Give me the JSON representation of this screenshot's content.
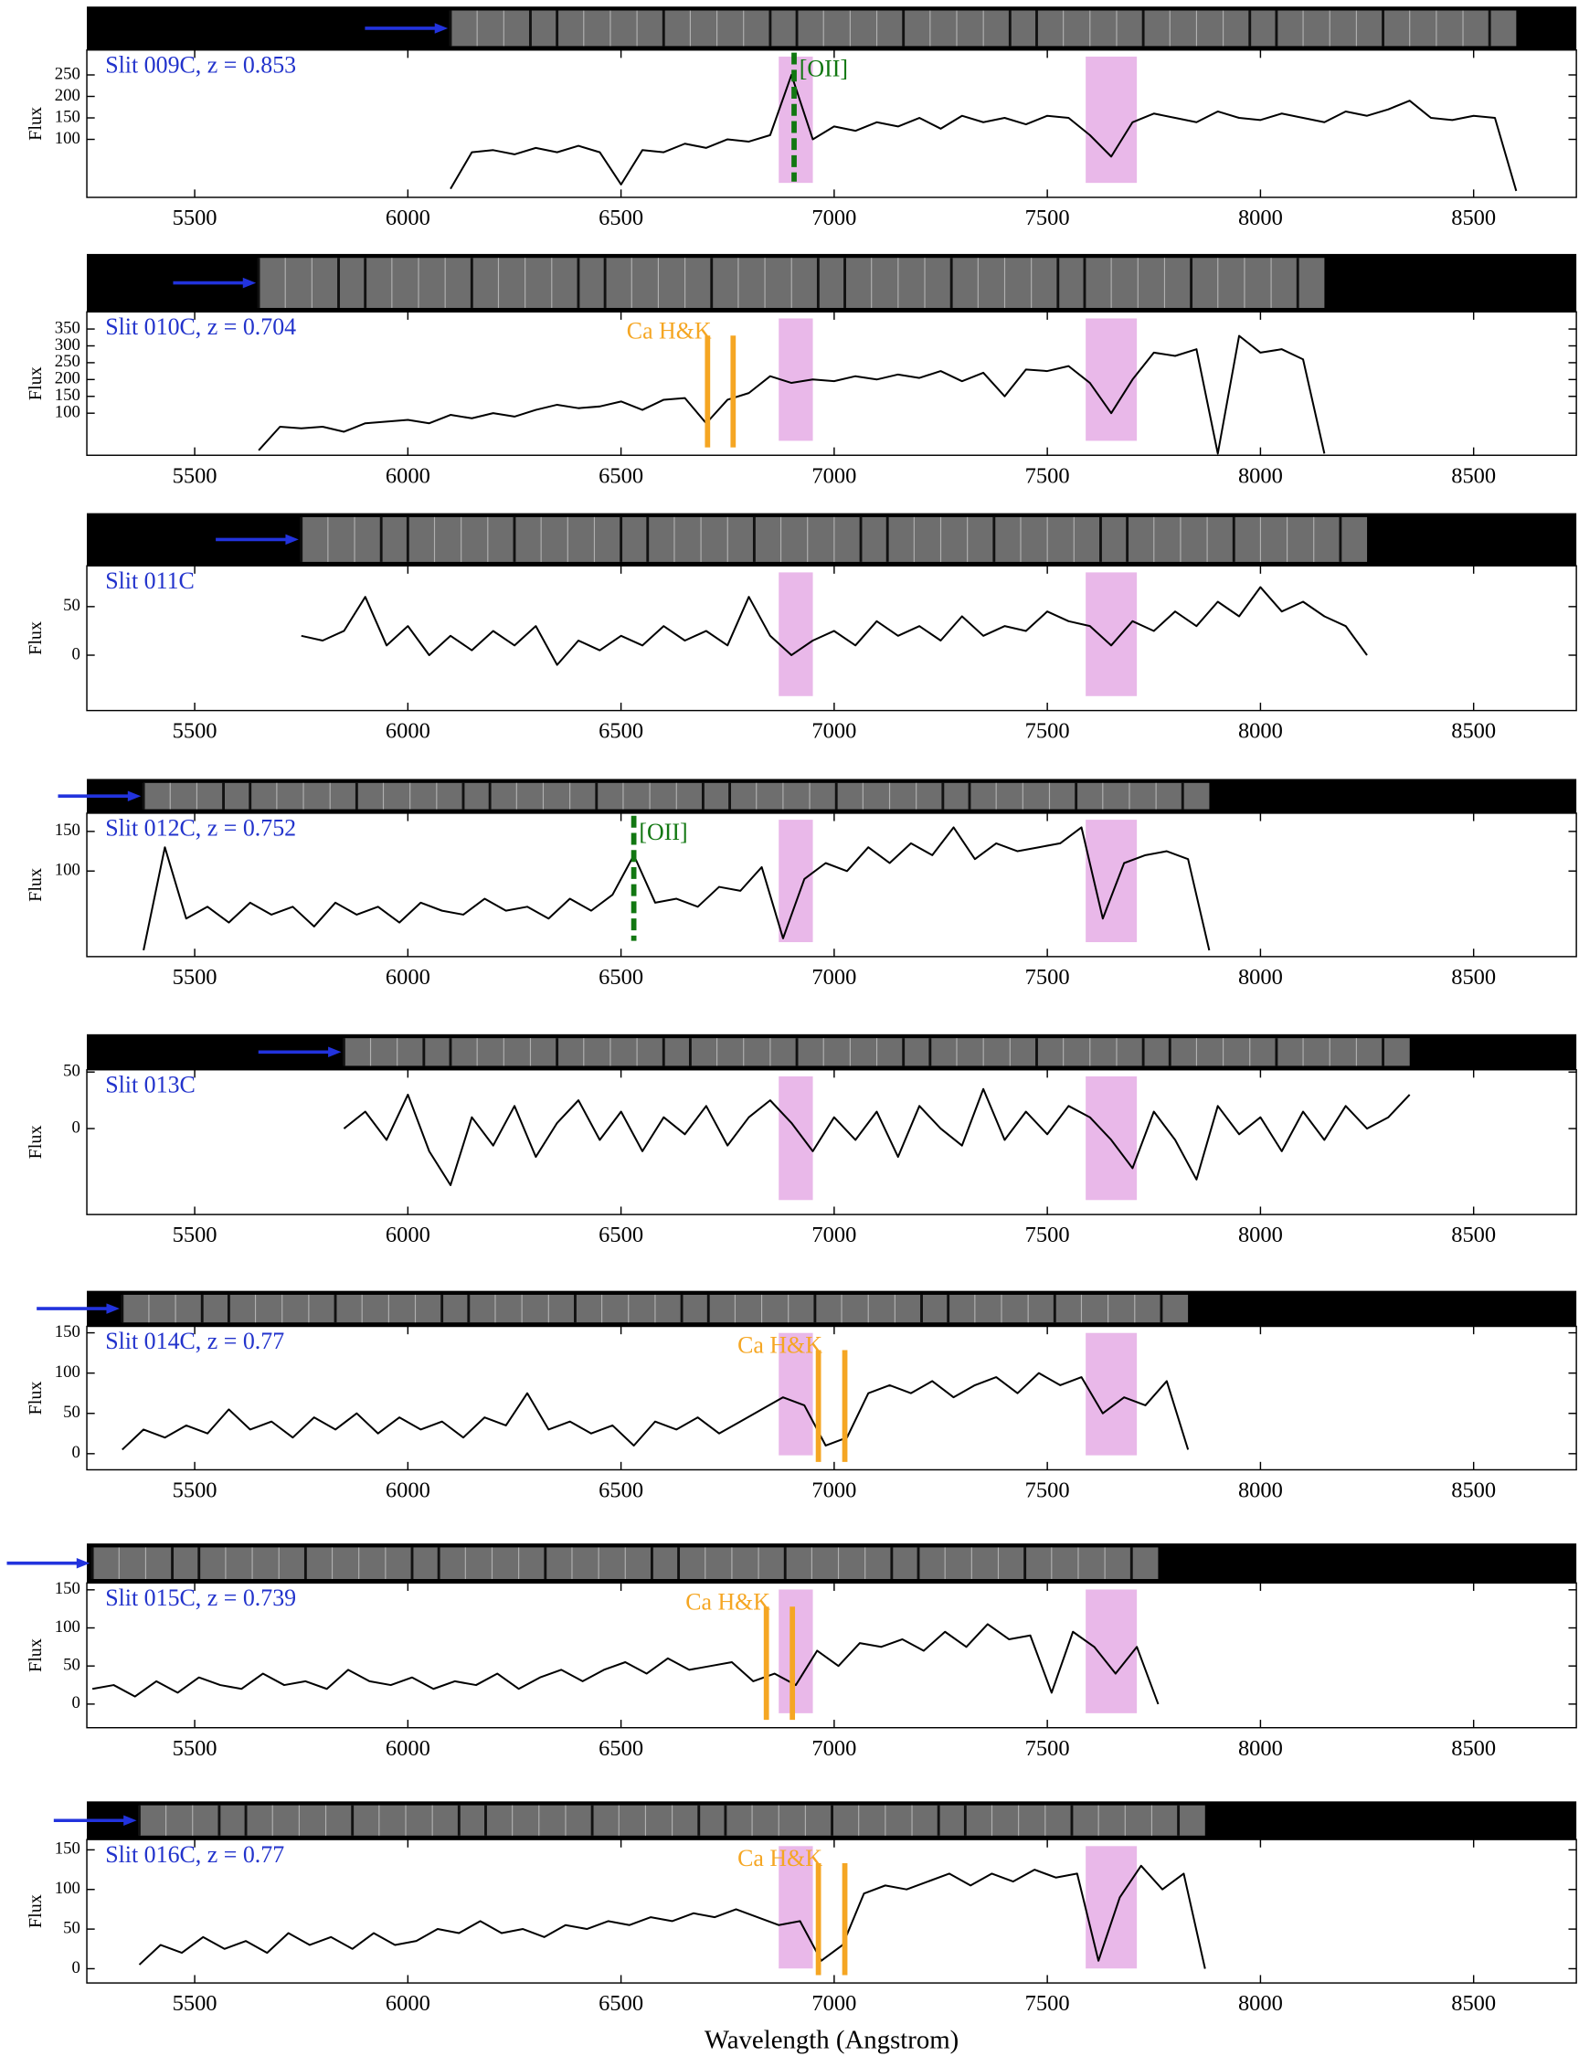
{
  "chart_data": [
    {
      "type": "line",
      "title": "Slit 009C, z = 0.853",
      "ylabel": "Flux",
      "color": "#000000",
      "x": [
        6100,
        6150,
        6200,
        6250,
        6300,
        6350,
        6400,
        6450,
        6500,
        6550,
        6600,
        6650,
        6700,
        6750,
        6800,
        6850,
        6900,
        6950,
        7000,
        7050,
        7100,
        7150,
        7200,
        7250,
        7300,
        7350,
        7400,
        7450,
        7500,
        7550,
        7600,
        7650,
        7700,
        7750,
        7800,
        7850,
        7900,
        7950,
        8000,
        8050,
        8100,
        8150,
        8200,
        8250,
        8300,
        8350,
        8400,
        8450,
        8500,
        8550,
        8600
      ],
      "values": [
        -15,
        70,
        75,
        65,
        80,
        70,
        85,
        70,
        -5,
        75,
        70,
        90,
        80,
        100,
        95,
        110,
        250,
        100,
        130,
        120,
        140,
        130,
        150,
        125,
        155,
        140,
        150,
        135,
        155,
        150,
        110,
        60,
        140,
        160,
        150,
        140,
        165,
        150,
        145,
        160,
        150,
        140,
        165,
        155,
        170,
        190,
        150,
        145,
        155,
        150,
        -20
      ],
      "xlim": [
        5247,
        8741
      ],
      "xticks": [
        5500,
        6000,
        6500,
        7000,
        7500,
        8000,
        8500
      ],
      "ylim": [
        -35,
        308
      ],
      "yticks": [
        100,
        150,
        200,
        250
      ],
      "shaded_regions": [
        [
          6870,
          6950
        ],
        [
          7590,
          7710
        ]
      ],
      "shade_color": "#e9b8e9",
      "annotations": [
        {
          "text": "[OII]",
          "x": [
            6906
          ],
          "color": "#117711",
          "style": "dashed"
        }
      ]
    },
    {
      "type": "line",
      "title": "Slit 010C, z = 0.704",
      "ylabel": "Flux",
      "color": "#000000",
      "x": [
        5650,
        5700,
        5750,
        5800,
        5850,
        5900,
        5950,
        6000,
        6050,
        6100,
        6150,
        6200,
        6250,
        6300,
        6350,
        6400,
        6450,
        6500,
        6550,
        6600,
        6650,
        6700,
        6750,
        6800,
        6850,
        6900,
        6950,
        7000,
        7050,
        7100,
        7150,
        7200,
        7250,
        7300,
        7350,
        7400,
        7450,
        7500,
        7550,
        7600,
        7650,
        7700,
        7750,
        7800,
        7850,
        7900,
        7950,
        8000,
        8050,
        8100,
        8150
      ],
      "values": [
        -10,
        60,
        55,
        60,
        45,
        70,
        75,
        80,
        70,
        95,
        85,
        100,
        90,
        110,
        125,
        115,
        120,
        135,
        110,
        140,
        145,
        70,
        140,
        160,
        210,
        190,
        200,
        195,
        210,
        200,
        215,
        205,
        225,
        195,
        220,
        150,
        230,
        225,
        240,
        190,
        100,
        200,
        280,
        270,
        290,
        -20,
        330,
        280,
        290,
        260,
        -20
      ],
      "xlim": [
        5247,
        8741
      ],
      "xticks": [
        5500,
        6000,
        6500,
        7000,
        7500,
        8000,
        8500
      ],
      "ylim": [
        -25,
        401
      ],
      "yticks": [
        100,
        150,
        200,
        250,
        300,
        350
      ],
      "shaded_regions": [
        [
          6870,
          6950
        ],
        [
          7590,
          7710
        ]
      ],
      "shade_color": "#e9b8e9",
      "annotations": [
        {
          "text": "Ca H&K",
          "x": [
            6703,
            6763
          ],
          "color": "#f5a623",
          "style": "solid"
        }
      ]
    },
    {
      "type": "line",
      "title": "Slit 011C",
      "ylabel": "Flux",
      "color": "#000000",
      "x": [
        5750,
        5800,
        5850,
        5900,
        5950,
        6000,
        6050,
        6100,
        6150,
        6200,
        6250,
        6300,
        6350,
        6400,
        6450,
        6500,
        6550,
        6600,
        6650,
        6700,
        6750,
        6800,
        6850,
        6900,
        6950,
        7000,
        7050,
        7100,
        7150,
        7200,
        7250,
        7300,
        7350,
        7400,
        7450,
        7500,
        7550,
        7600,
        7650,
        7700,
        7750,
        7800,
        7850,
        7900,
        7950,
        8000,
        8050,
        8100,
        8150,
        8200,
        8250
      ],
      "values": [
        20,
        15,
        25,
        60,
        10,
        30,
        0,
        20,
        5,
        25,
        10,
        30,
        -10,
        15,
        5,
        20,
        10,
        30,
        15,
        25,
        10,
        60,
        20,
        0,
        15,
        25,
        10,
        35,
        20,
        30,
        15,
        40,
        20,
        30,
        25,
        45,
        35,
        30,
        10,
        35,
        25,
        45,
        30,
        55,
        40,
        70,
        45,
        55,
        40,
        30,
        0
      ],
      "xlim": [
        5247,
        8741
      ],
      "xticks": [
        5500,
        6000,
        6500,
        7000,
        7500,
        8000,
        8500
      ],
      "ylim": [
        -57,
        92
      ],
      "yticks": [
        0,
        50
      ],
      "shaded_regions": [
        [
          6870,
          6950
        ],
        [
          7590,
          7710
        ]
      ],
      "shade_color": "#e9b8e9",
      "annotations": []
    },
    {
      "type": "line",
      "title": "Slit 012C, z = 0.752",
      "ylabel": "Flux",
      "color": "#000000",
      "x": [
        5380,
        5430,
        5480,
        5530,
        5580,
        5630,
        5680,
        5730,
        5780,
        5830,
        5880,
        5930,
        5980,
        6030,
        6080,
        6130,
        6180,
        6230,
        6280,
        6330,
        6380,
        6430,
        6480,
        6530,
        6580,
        6630,
        6680,
        6730,
        6780,
        6830,
        6880,
        6930,
        6980,
        7030,
        7080,
        7130,
        7180,
        7230,
        7280,
        7330,
        7380,
        7430,
        7480,
        7530,
        7580,
        7630,
        7680,
        7730,
        7780,
        7830,
        7880
      ],
      "values": [
        0,
        130,
        40,
        55,
        35,
        60,
        45,
        55,
        30,
        60,
        45,
        55,
        35,
        60,
        50,
        45,
        65,
        50,
        55,
        40,
        65,
        50,
        70,
        120,
        60,
        65,
        55,
        80,
        75,
        105,
        15,
        90,
        110,
        100,
        130,
        110,
        135,
        120,
        155,
        115,
        135,
        125,
        130,
        135,
        155,
        40,
        110,
        120,
        125,
        115,
        0
      ],
      "xlim": [
        5247,
        8741
      ],
      "xticks": [
        5500,
        6000,
        6500,
        7000,
        7500,
        8000,
        8500
      ],
      "ylim": [
        -8,
        173
      ],
      "yticks": [
        100,
        150
      ],
      "shaded_regions": [
        [
          6870,
          6950
        ],
        [
          7590,
          7710
        ]
      ],
      "shade_color": "#e9b8e9",
      "annotations": [
        {
          "text": "[OII]",
          "x": [
            6530
          ],
          "color": "#117711",
          "style": "dashed"
        }
      ]
    },
    {
      "type": "line",
      "title": "Slit 013C",
      "ylabel": "Flux",
      "color": "#000000",
      "x": [
        5850,
        5900,
        5950,
        6000,
        6050,
        6100,
        6150,
        6200,
        6250,
        6300,
        6350,
        6400,
        6450,
        6500,
        6550,
        6600,
        6650,
        6700,
        6750,
        6800,
        6850,
        6900,
        6950,
        7000,
        7050,
        7100,
        7150,
        7200,
        7250,
        7300,
        7350,
        7400,
        7450,
        7500,
        7550,
        7600,
        7650,
        7700,
        7750,
        7800,
        7850,
        7900,
        7950,
        8000,
        8050,
        8100,
        8150,
        8200,
        8250,
        8300,
        8350
      ],
      "values": [
        0,
        15,
        -10,
        30,
        -20,
        -50,
        10,
        -15,
        20,
        -25,
        5,
        25,
        -10,
        15,
        -20,
        10,
        -5,
        20,
        -15,
        10,
        25,
        5,
        -20,
        10,
        -10,
        15,
        -25,
        20,
        0,
        -15,
        35,
        -10,
        15,
        -5,
        20,
        10,
        -10,
        -35,
        15,
        -10,
        -45,
        20,
        -5,
        10,
        -20,
        15,
        -10,
        20,
        0,
        10,
        30
      ],
      "xlim": [
        5247,
        8741
      ],
      "xticks": [
        5500,
        6000,
        6500,
        7000,
        7500,
        8000,
        8500
      ],
      "ylim": [
        -76,
        52
      ],
      "yticks": [
        0,
        50
      ],
      "shaded_regions": [
        [
          6870,
          6950
        ],
        [
          7590,
          7710
        ]
      ],
      "shade_color": "#e9b8e9",
      "annotations": []
    },
    {
      "type": "line",
      "title": "Slit 014C, z = 0.77",
      "ylabel": "Flux",
      "color": "#000000",
      "x": [
        5330,
        5380,
        5430,
        5480,
        5530,
        5580,
        5630,
        5680,
        5730,
        5780,
        5830,
        5880,
        5930,
        5980,
        6030,
        6080,
        6130,
        6180,
        6230,
        6280,
        6330,
        6380,
        6430,
        6480,
        6530,
        6580,
        6630,
        6680,
        6730,
        6780,
        6830,
        6880,
        6930,
        6980,
        7030,
        7080,
        7130,
        7180,
        7230,
        7280,
        7330,
        7380,
        7430,
        7480,
        7530,
        7580,
        7630,
        7680,
        7730,
        7780,
        7830
      ],
      "values": [
        5,
        30,
        20,
        35,
        25,
        55,
        30,
        40,
        20,
        45,
        30,
        50,
        25,
        45,
        30,
        40,
        20,
        45,
        35,
        75,
        30,
        40,
        25,
        35,
        10,
        40,
        30,
        45,
        25,
        40,
        55,
        70,
        60,
        10,
        20,
        75,
        85,
        75,
        90,
        70,
        85,
        95,
        75,
        100,
        85,
        95,
        50,
        70,
        60,
        90,
        5
      ],
      "xlim": [
        5247,
        8741
      ],
      "xticks": [
        5500,
        6000,
        6500,
        7000,
        7500,
        8000,
        8500
      ],
      "ylim": [
        -20,
        158
      ],
      "yticks": [
        0,
        50,
        100,
        150
      ],
      "shaded_regions": [
        [
          6870,
          6950
        ],
        [
          7590,
          7710
        ]
      ],
      "shade_color": "#e9b8e9",
      "annotations": [
        {
          "text": "Ca H&K",
          "x": [
            6963,
            7025
          ],
          "color": "#f5a623",
          "style": "solid"
        }
      ]
    },
    {
      "type": "line",
      "title": "Slit 015C, z = 0.739",
      "ylabel": "Flux",
      "color": "#000000",
      "x": [
        5260,
        5310,
        5360,
        5410,
        5460,
        5510,
        5560,
        5610,
        5660,
        5710,
        5760,
        5810,
        5860,
        5910,
        5960,
        6010,
        6060,
        6110,
        6160,
        6210,
        6260,
        6310,
        6360,
        6410,
        6460,
        6510,
        6560,
        6610,
        6660,
        6710,
        6760,
        6810,
        6860,
        6910,
        6960,
        7010,
        7060,
        7110,
        7160,
        7210,
        7260,
        7310,
        7360,
        7410,
        7460,
        7510,
        7560,
        7610,
        7660,
        7710,
        7760
      ],
      "values": [
        20,
        25,
        10,
        30,
        15,
        35,
        25,
        20,
        40,
        25,
        30,
        20,
        45,
        30,
        25,
        35,
        20,
        30,
        25,
        40,
        20,
        35,
        45,
        30,
        45,
        55,
        40,
        60,
        45,
        50,
        55,
        30,
        40,
        25,
        70,
        50,
        80,
        75,
        85,
        70,
        95,
        75,
        105,
        85,
        90,
        15,
        95,
        75,
        40,
        75,
        0
      ],
      "xlim": [
        5247,
        8741
      ],
      "xticks": [
        5500,
        6000,
        6500,
        7000,
        7500,
        8000,
        8500
      ],
      "ylim": [
        -31,
        159
      ],
      "yticks": [
        0,
        50,
        100,
        150
      ],
      "shaded_regions": [
        [
          6870,
          6950
        ],
        [
          7590,
          7710
        ]
      ],
      "shade_color": "#e9b8e9",
      "annotations": [
        {
          "text": "Ca H&K",
          "x": [
            6841,
            6902
          ],
          "color": "#f5a623",
          "style": "solid"
        }
      ]
    },
    {
      "type": "line",
      "title": "Slit 016C, z = 0.77",
      "ylabel": "Flux",
      "xlabel": "Wavelength (Angstrom)",
      "color": "#000000",
      "x": [
        5370,
        5420,
        5470,
        5520,
        5570,
        5620,
        5670,
        5720,
        5770,
        5820,
        5870,
        5920,
        5970,
        6020,
        6070,
        6120,
        6170,
        6220,
        6270,
        6320,
        6370,
        6420,
        6470,
        6520,
        6570,
        6620,
        6670,
        6720,
        6770,
        6820,
        6870,
        6920,
        6970,
        7020,
        7070,
        7120,
        7170,
        7220,
        7270,
        7320,
        7370,
        7420,
        7470,
        7520,
        7570,
        7620,
        7670,
        7720,
        7770,
        7820,
        7870
      ],
      "values": [
        5,
        30,
        20,
        40,
        25,
        35,
        20,
        45,
        30,
        40,
        25,
        45,
        30,
        35,
        50,
        45,
        60,
        45,
        50,
        40,
        55,
        50,
        60,
        55,
        65,
        60,
        70,
        65,
        75,
        65,
        55,
        60,
        10,
        30,
        95,
        105,
        100,
        110,
        120,
        105,
        120,
        110,
        125,
        115,
        120,
        10,
        90,
        130,
        100,
        120,
        0
      ],
      "xlim": [
        5247,
        8741
      ],
      "xticks": [
        5500,
        6000,
        6500,
        7000,
        7500,
        8000,
        8500
      ],
      "ylim": [
        -18,
        163
      ],
      "yticks": [
        0,
        50,
        100,
        150
      ],
      "shaded_regions": [
        [
          6870,
          6950
        ],
        [
          7590,
          7710
        ]
      ],
      "shade_color": "#e9b8e9",
      "annotations": [
        {
          "text": "Ca H&K",
          "x": [
            6963,
            7025
          ],
          "color": "#f5a623",
          "style": "solid"
        }
      ]
    }
  ]
}
